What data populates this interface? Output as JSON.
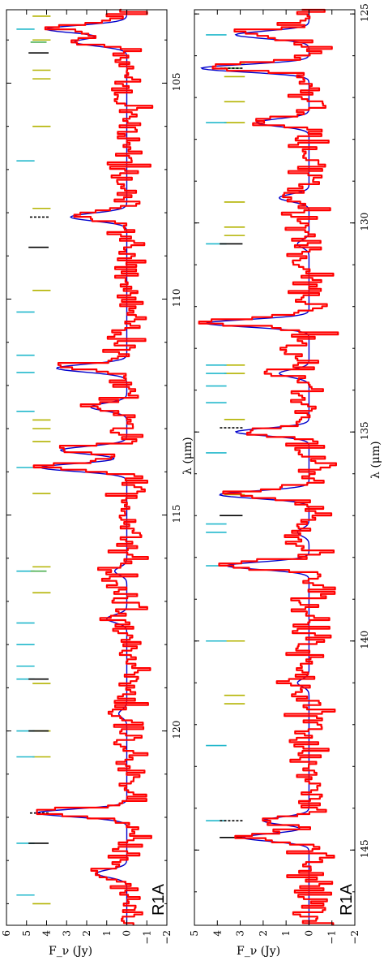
{
  "figure": {
    "xlabel_bottom": "λ (μm)",
    "xlabel_top": "λ (μm)",
    "ylabel_bottom": "F_ν (Jy)",
    "ylabel_top": "F_ν (Jy)"
  },
  "chart_data": [
    {
      "type": "line",
      "panel_label": "R1A",
      "xlabel": "λ (μm)",
      "ylabel": "F_ν (Jy)",
      "xlim": [
        103.3,
        124.5
      ],
      "ylim": [
        -2,
        6
      ],
      "x_ticks": [
        105,
        110,
        115,
        120
      ],
      "y_ticks": [
        -2,
        -1,
        0,
        1,
        2,
        3,
        4,
        5,
        6
      ],
      "y_tick_labels": [
        "−2",
        "−1",
        "0",
        "1",
        "2",
        "3",
        "4",
        "5",
        "6"
      ],
      "line_peaks": [
        {
          "x": 103.75,
          "peak": 4.0
        },
        {
          "x": 104.05,
          "peak": 2.6
        },
        {
          "x": 108.1,
          "peak": 2.8
        },
        {
          "x": 111.6,
          "peak": 3.5
        },
        {
          "x": 112.5,
          "peak": 1.8
        },
        {
          "x": 113.5,
          "peak": 3.3
        },
        {
          "x": 113.9,
          "peak": 4.3
        },
        {
          "x": 116.3,
          "peak": 0.6
        },
        {
          "x": 117.4,
          "peak": 1.0
        },
        {
          "x": 119.6,
          "peak": 0.4
        },
        {
          "x": 121.9,
          "peak": 4.5
        },
        {
          "x": 123.3,
          "peak": 1.5
        }
      ],
      "series": [
        {
          "name": "",
          "role": "observed",
          "color": "#ff0000"
        },
        {
          "name": "",
          "role": "model",
          "color": "#0000cc"
        }
      ],
      "markers": {
        "black": [
          104.3,
          108.8,
          118.8,
          120.0,
          122.6
        ],
        "black_dashed": [
          108.1,
          121.9
        ],
        "olive": [
          103.45,
          104.0,
          104.7,
          104.9,
          106.0,
          107.9,
          109.8,
          112.8,
          113.0,
          113.3,
          114.5,
          116.2,
          116.8,
          118.9,
          120.0,
          120.6,
          124.0
        ],
        "cyan": [
          103.75,
          106.8,
          110.3,
          111.3,
          111.7,
          112.6,
          113.9,
          116.3,
          117.5,
          118.0,
          118.5,
          118.8,
          120.0,
          120.6,
          122.6,
          123.8
        ],
        "green": [
          104.05,
          116.3
        ]
      },
      "colors": {
        "black": "#000000",
        "olive": "#b3b300",
        "cyan": "#22b8cc",
        "green": "#4caf50"
      }
    },
    {
      "type": "line",
      "panel_label": "R1A",
      "xlabel": "λ (μm)",
      "ylabel": "F_ν (Jy)",
      "xlim": [
        124.9,
        146.8
      ],
      "ylim": [
        -2,
        5
      ],
      "x_ticks": [
        125,
        130,
        135,
        140,
        145
      ],
      "y_ticks": [
        -2,
        -1,
        0,
        1,
        2,
        3,
        4,
        5
      ],
      "y_tick_labels": [
        "−2",
        "−1",
        "0",
        "1",
        "2",
        "3",
        "4",
        "5"
      ],
      "line_peaks": [
        {
          "x": 125.5,
          "peak": 3.2
        },
        {
          "x": 126.3,
          "peak": 4.7
        },
        {
          "x": 127.6,
          "peak": 2.3
        },
        {
          "x": 129.4,
          "peak": 1.3
        },
        {
          "x": 130.5,
          "peak": 0.5
        },
        {
          "x": 132.4,
          "peak": 4.5
        },
        {
          "x": 133.6,
          "peak": 1.3
        },
        {
          "x": 135.0,
          "peak": 3.2
        },
        {
          "x": 136.5,
          "peak": 3.9
        },
        {
          "x": 137.4,
          "peak": 0.5
        },
        {
          "x": 138.2,
          "peak": 3.6
        },
        {
          "x": 141.0,
          "peak": 0.5
        },
        {
          "x": 144.3,
          "peak": 2.0
        },
        {
          "x": 144.7,
          "peak": 2.9
        }
      ],
      "series": [
        {
          "name": "",
          "role": "observed",
          "color": "#ff0000"
        },
        {
          "name": "",
          "role": "model",
          "color": "#0000cc"
        }
      ],
      "markers": {
        "black": [
          130.5,
          137.0,
          144.7
        ],
        "black_dashed": [
          126.3,
          134.9,
          144.3
        ],
        "olive": [
          126.2,
          126.5,
          127.1,
          127.6,
          129.5,
          130.1,
          130.3,
          133.4,
          133.6,
          134.7,
          136.5,
          140.0,
          141.3,
          141.5
        ],
        "cyan": [
          125.5,
          127.6,
          130.5,
          133.4,
          133.6,
          133.9,
          134.3,
          135.5,
          137.2,
          137.4,
          138.2,
          140.0,
          142.5,
          144.3
        ],
        "green": [
          126.3
        ]
      },
      "colors": {
        "black": "#000000",
        "olive": "#b3b300",
        "cyan": "#22b8cc",
        "green": "#4caf50"
      }
    }
  ]
}
